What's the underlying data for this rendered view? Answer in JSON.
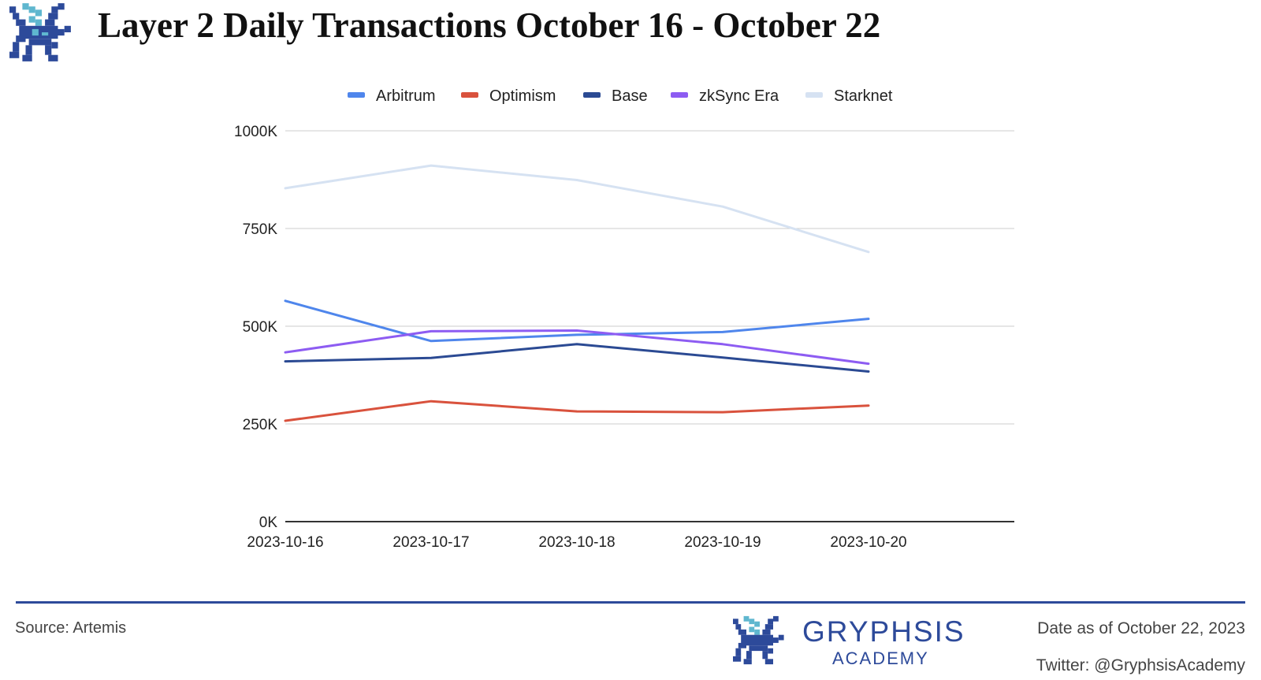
{
  "title": "Layer 2 Daily Transactions October 16 - October 22",
  "colors": {
    "arbitrum": "#4f86ec",
    "optimism": "#d9523d",
    "base": "#2b4a93",
    "zksync": "#8d5cf2",
    "starknet": "#d6e2f2",
    "grid": "#cccccc",
    "axis": "#333333",
    "brand": "#2d4a9a",
    "brand_light": "#5fb7cf"
  },
  "chart_data": {
    "type": "line",
    "title": "",
    "xlabel": "",
    "ylabel": "",
    "categories": [
      "2023-10-16",
      "2023-10-17",
      "2023-10-18",
      "2023-10-19",
      "2023-10-20"
    ],
    "ylim": [
      0,
      1000000
    ],
    "yticks": [
      0,
      250000,
      500000,
      750000,
      1000000
    ],
    "ytick_labels": [
      "0K",
      "250K",
      "500K",
      "750K",
      "1000K"
    ],
    "grid": true,
    "legend_position": "top-center",
    "series": [
      {
        "name": "Arbitrum",
        "color_key": "arbitrum",
        "values": [
          565000,
          462000,
          478000,
          485000,
          519000
        ]
      },
      {
        "name": "Optimism",
        "color_key": "optimism",
        "values": [
          258000,
          308000,
          282000,
          280000,
          297000
        ]
      },
      {
        "name": "Base",
        "color_key": "base",
        "values": [
          410000,
          419000,
          454000,
          420000,
          384000
        ]
      },
      {
        "name": "zkSync Era",
        "color_key": "zksync",
        "values": [
          433000,
          487000,
          489000,
          454000,
          404000
        ]
      },
      {
        "name": "Starknet",
        "color_key": "starknet",
        "values": [
          853000,
          911000,
          874000,
          806000,
          690000
        ]
      }
    ]
  },
  "footer": {
    "source": "Source: Artemis",
    "date": "Date as of October 22, 2023",
    "twitter": "Twitter: @GryphsisAcademy"
  },
  "brand": {
    "name": "GRYPHSIS",
    "subtitle": "ACADEMY"
  }
}
